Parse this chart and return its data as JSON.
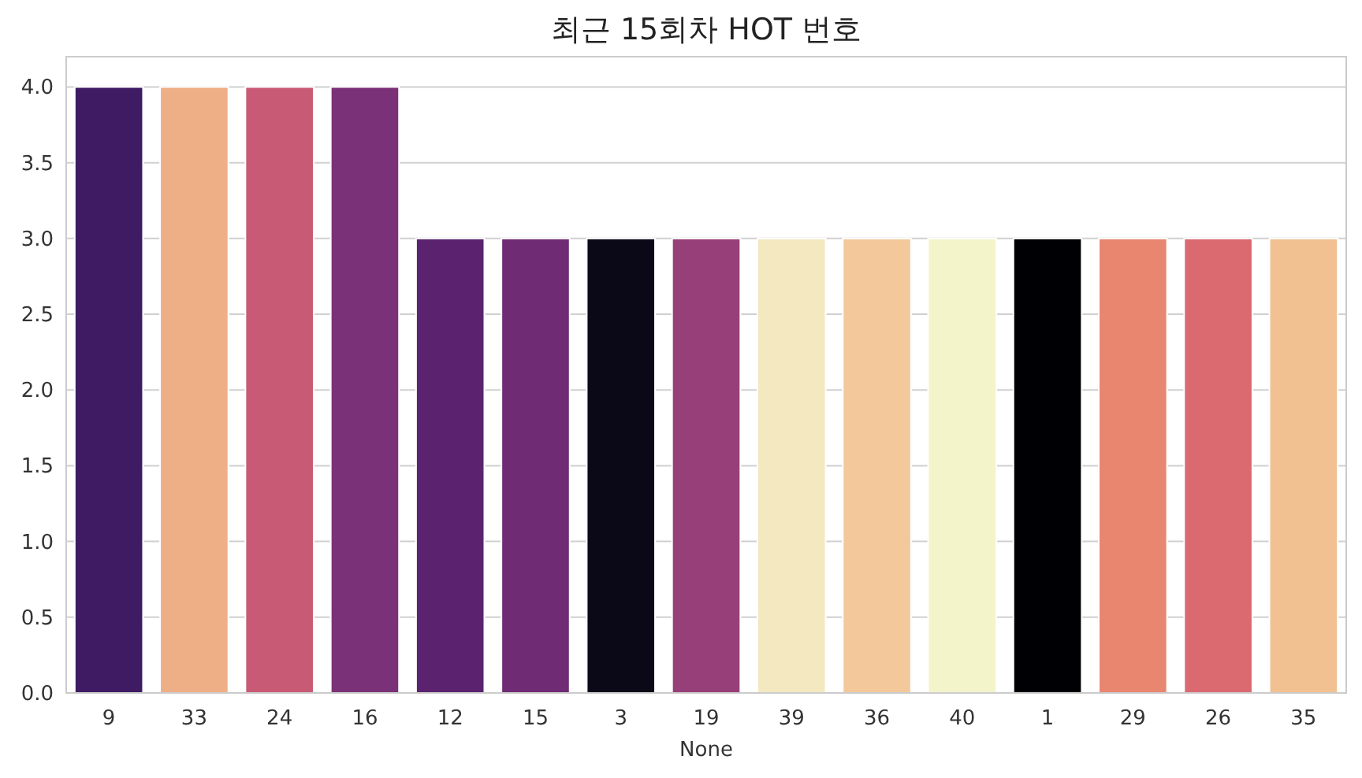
{
  "chart_data": {
    "type": "bar",
    "title": "최근 15회차 HOT 번호",
    "xlabel": "None",
    "categories": [
      "9",
      "33",
      "24",
      "16",
      "12",
      "15",
      "3",
      "19",
      "39",
      "36",
      "40",
      "1",
      "29",
      "26",
      "35"
    ],
    "values": [
      4,
      4,
      4,
      4,
      3,
      3,
      3,
      3,
      3,
      3,
      3,
      3,
      3,
      3,
      3
    ],
    "colors": [
      "#3f1b63",
      "#eeae86",
      "#c85a75",
      "#7b3177",
      "#5b226f",
      "#6f2b74",
      "#0b0818",
      "#973f78",
      "#f3e8bf",
      "#f3c99c",
      "#f3f4c9",
      "#000004",
      "#e8866f",
      "#da6970",
      "#f1c192"
    ],
    "ylim": [
      0,
      4.2
    ],
    "yticks": [
      {
        "value": 0,
        "label": "0.0"
      },
      {
        "value": 0.5,
        "label": "0.5"
      },
      {
        "value": 1,
        "label": "1.0"
      },
      {
        "value": 1.5,
        "label": "1.5"
      },
      {
        "value": 2,
        "label": "2.0"
      },
      {
        "value": 2.5,
        "label": "2.5"
      },
      {
        "value": 3,
        "label": "3.0"
      },
      {
        "value": 3.5,
        "label": "3.5"
      },
      {
        "value": 4,
        "label": "4.0"
      }
    ],
    "grid": "y"
  }
}
